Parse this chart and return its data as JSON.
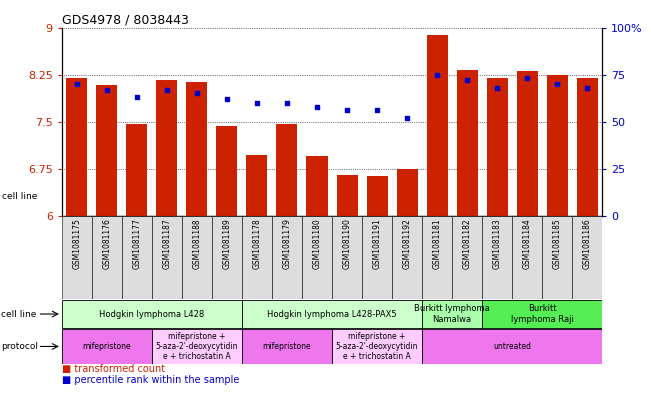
{
  "title": "GDS4978 / 8038443",
  "samples": [
    "GSM1081175",
    "GSM1081176",
    "GSM1081177",
    "GSM1081187",
    "GSM1081188",
    "GSM1081189",
    "GSM1081178",
    "GSM1081179",
    "GSM1081180",
    "GSM1081190",
    "GSM1081191",
    "GSM1081192",
    "GSM1081181",
    "GSM1081182",
    "GSM1081183",
    "GSM1081184",
    "GSM1081185",
    "GSM1081186"
  ],
  "bar_values": [
    8.19,
    8.08,
    7.47,
    8.17,
    8.13,
    7.43,
    6.97,
    7.46,
    6.95,
    6.65,
    6.63,
    6.75,
    8.88,
    8.33,
    8.2,
    8.3,
    8.25,
    8.19
  ],
  "dot_values": [
    70,
    67,
    63,
    67,
    65,
    62,
    60,
    60,
    58,
    56,
    56,
    52,
    75,
    72,
    68,
    73,
    70,
    68
  ],
  "ylim_left": [
    6,
    9
  ],
  "ylim_right": [
    0,
    100
  ],
  "yticks_left": [
    6,
    6.75,
    7.5,
    8.25,
    9
  ],
  "yticks_right": [
    0,
    25,
    50,
    75,
    100
  ],
  "ytick_labels_left": [
    "6",
    "6.75",
    "7.5",
    "8.25",
    "9"
  ],
  "ytick_labels_right": [
    "0",
    "25",
    "50",
    "75",
    "100%"
  ],
  "bar_color": "#cc2200",
  "dot_color": "#0000cc",
  "cell_line_groups": [
    {
      "label": "Hodgkin lymphoma L428",
      "start": 0,
      "end": 5,
      "color": "#ccffcc"
    },
    {
      "label": "Hodgkin lymphoma L428-PAX5",
      "start": 6,
      "end": 11,
      "color": "#ccffcc"
    },
    {
      "label": "Burkitt lymphoma\nNamalwa",
      "start": 12,
      "end": 13,
      "color": "#aaffaa"
    },
    {
      "label": "Burkitt\nlymphoma Raji",
      "start": 14,
      "end": 17,
      "color": "#55ee55"
    }
  ],
  "protocol_groups": [
    {
      "label": "mifepristone",
      "start": 0,
      "end": 2,
      "color": "#ee77ee"
    },
    {
      "label": "mifepristone +\n5-aza-2'-deoxycytidin\ne + trichostatin A",
      "start": 3,
      "end": 5,
      "color": "#ffccff"
    },
    {
      "label": "mifepristone",
      "start": 6,
      "end": 8,
      "color": "#ee77ee"
    },
    {
      "label": "mifepristone +\n5-aza-2'-deoxycytidin\ne + trichostatin A",
      "start": 9,
      "end": 11,
      "color": "#ffccff"
    },
    {
      "label": "untreated",
      "start": 12,
      "end": 17,
      "color": "#ee77ee"
    }
  ],
  "left_axis_color": "#cc2200",
  "right_axis_color": "#0000cc",
  "bg_color": "#ffffff",
  "sample_bg_color": "#dddddd"
}
